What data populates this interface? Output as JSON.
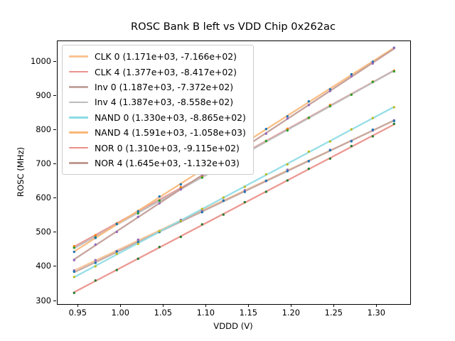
{
  "title": "ROSC Bank B left vs VDD Chip 0x262ac",
  "axes": {
    "xlabel": "VDDD (V)",
    "ylabel": "ROSC (MHz)",
    "xlim": [
      0.9256,
      1.3389
    ],
    "ylim": [
      291.7,
      1061.4
    ],
    "x_ticks": [
      {
        "v": 0.95,
        "label": "0.95"
      },
      {
        "v": 1.0,
        "label": "1.00"
      },
      {
        "v": 1.05,
        "label": "1.05"
      },
      {
        "v": 1.1,
        "label": "1.10"
      },
      {
        "v": 1.15,
        "label": "1.15"
      },
      {
        "v": 1.2,
        "label": "1.20"
      },
      {
        "v": 1.25,
        "label": "1.25"
      },
      {
        "v": 1.3,
        "label": "1.30"
      }
    ],
    "y_ticks": [
      {
        "v": 300,
        "label": "300"
      },
      {
        "v": 400,
        "label": "400"
      },
      {
        "v": 500,
        "label": "500"
      },
      {
        "v": 600,
        "label": "600"
      },
      {
        "v": 700,
        "label": "700"
      },
      {
        "v": 800,
        "label": "800"
      },
      {
        "v": 900,
        "label": "900"
      },
      {
        "v": 1000,
        "label": "1000"
      }
    ]
  },
  "chart_data": {
    "type": "scatter",
    "title": "ROSC Bank B left vs VDD Chip 0x262ac",
    "xlabel": "VDDD (V)",
    "ylabel": "ROSC (MHz)",
    "grid": false,
    "legend_position": "upper left",
    "x_points": [
      0.945,
      0.97,
      0.995,
      1.02,
      1.045,
      1.07,
      1.095,
      1.12,
      1.145,
      1.17,
      1.195,
      1.22,
      1.245,
      1.27,
      1.295,
      1.32
    ],
    "series": [
      {
        "name": "CLK 0",
        "legend_label": "CLK 0 (1.171e+03, -7.166e+02)",
        "slope": 1171,
        "intercept": -716.6,
        "line_color": "#f9c394",
        "marker_color": "#9467bd"
      },
      {
        "name": "CLK 4",
        "legend_label": "CLK 4 (1.377e+03, -8.417e+02)",
        "slope": 1377,
        "intercept": -841.7,
        "line_color": "#e9928e",
        "marker_color": "#ff7f0e"
      },
      {
        "name": "Inv 0",
        "legend_label": "Inv 0 (1.187e+03, -7.372e+02)",
        "slope": 1187,
        "intercept": -737.2,
        "line_color": "#c3a59e",
        "marker_color": "#1f77b4"
      },
      {
        "name": "Inv 4",
        "legend_label": "Inv 4 (1.387e+03, -8.558e+02)",
        "slope": 1387,
        "intercept": -855.8,
        "line_color": "#bcbcbc",
        "marker_color": "#2ca02c"
      },
      {
        "name": "NAND 0",
        "legend_label": "NAND 0 (1.330e+03, -8.865e+02)",
        "slope": 1330,
        "intercept": -886.5,
        "line_color": "#8cdbe5",
        "marker_color": "#bcbd22"
      },
      {
        "name": "NAND 4",
        "legend_label": "NAND 4 (1.591e+03, -1.058e+03)",
        "slope": 1591,
        "intercept": -1058,
        "line_color": "#fab878",
        "marker_color": "#1f77b4"
      },
      {
        "name": "NOR 0",
        "legend_label": "NOR 0 (1.310e+03, -9.115e+02)",
        "slope": 1310,
        "intercept": -911.5,
        "line_color": "#ea8f88",
        "marker_color": "#2e7d32"
      },
      {
        "name": "NOR 4",
        "legend_label": "NOR 4 (1.645e+03, -1.132e+03)",
        "slope": 1645,
        "intercept": -1132,
        "line_color": "#c09a93",
        "marker_color": "#9467bd"
      }
    ]
  }
}
